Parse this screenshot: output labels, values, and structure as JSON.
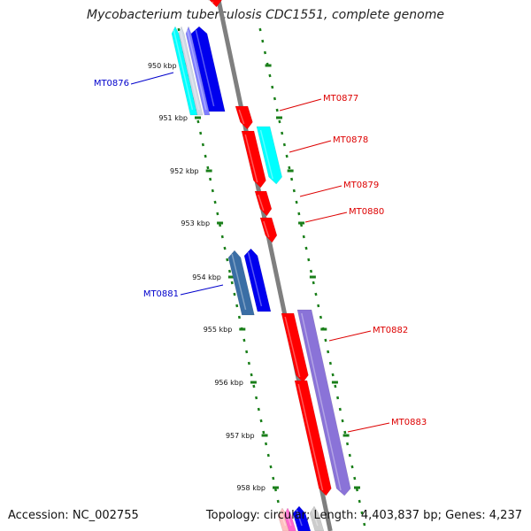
{
  "title": "Mycobacterium tuberculosis CDC1551, complete genome",
  "accession": "Accession: NC_002755",
  "summary": "Topology: circular; Length: 4,403,837 bp; Genes: 4,237",
  "colors": {
    "backbone": "#7f7f7f",
    "ticks": "#1a7f1a",
    "forward_label": "#dd0000",
    "reverse_label": "#0000cc",
    "red_gene": "#ff0000",
    "blue_gene": "#0000ee",
    "cyan_gene": "#00ffff",
    "steel_gene": "#3a6ea5",
    "purple_gene": "#8a73d8"
  },
  "scale": {
    "unit": "kbp",
    "ticks": [
      {
        "kbp": 950,
        "label": "950 kbp"
      },
      {
        "kbp": 951,
        "label": "951 kbp"
      },
      {
        "kbp": 952,
        "label": "952 kbp"
      },
      {
        "kbp": 953,
        "label": "953 kbp"
      },
      {
        "kbp": 954,
        "label": "954 kbp"
      },
      {
        "kbp": 955,
        "label": "955 kbp"
      },
      {
        "kbp": 956,
        "label": "956 kbp"
      },
      {
        "kbp": 957,
        "label": "957 kbp"
      },
      {
        "kbp": 958,
        "label": "958 kbp"
      }
    ]
  },
  "labels": [
    {
      "name": "MT0876",
      "side": "left"
    },
    {
      "name": "MT0877",
      "side": "right"
    },
    {
      "name": "MT0878",
      "side": "right"
    },
    {
      "name": "MT0879",
      "side": "right"
    },
    {
      "name": "MT0880",
      "side": "right"
    },
    {
      "name": "MT0881",
      "side": "left"
    },
    {
      "name": "MT0882",
      "side": "right"
    },
    {
      "name": "MT0883",
      "side": "right"
    }
  ]
}
